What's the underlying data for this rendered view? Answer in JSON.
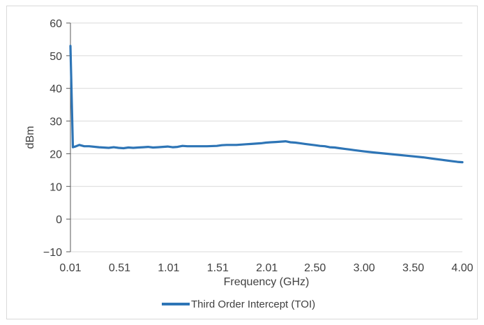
{
  "chart_data": {
    "type": "line",
    "title": "",
    "xlabel": "Frequency (GHz)",
    "ylabel": "dBm",
    "ylim": [
      -10,
      60
    ],
    "xlim": [
      0.01,
      4.0
    ],
    "grid": true,
    "legend_position": "bottom",
    "x_ticks": [
      "0.01",
      "0.51",
      "1.01",
      "1.51",
      "2.01",
      "2.50",
      "3.00",
      "3.50",
      "4.00"
    ],
    "x_tick_values": [
      0.01,
      0.51,
      1.01,
      1.51,
      2.01,
      2.5,
      3.0,
      3.5,
      4.0
    ],
    "y_ticks": [
      "60",
      "50",
      "40",
      "30",
      "20",
      "10",
      "0",
      "−10"
    ],
    "y_tick_values": [
      60,
      50,
      40,
      30,
      20,
      10,
      0,
      -10
    ],
    "series": [
      {
        "name": "Third Order Intercept (TOI)",
        "color": "#2e75b6",
        "x": [
          0.01,
          0.035,
          0.06,
          0.1,
          0.15,
          0.2,
          0.3,
          0.4,
          0.45,
          0.5,
          0.55,
          0.6,
          0.65,
          0.7,
          0.75,
          0.8,
          0.85,
          0.9,
          0.95,
          1.0,
          1.05,
          1.1,
          1.15,
          1.2,
          1.3,
          1.4,
          1.5,
          1.55,
          1.6,
          1.65,
          1.7,
          1.75,
          1.8,
          1.85,
          1.9,
          1.95,
          2.0,
          2.05,
          2.1,
          2.15,
          2.2,
          2.25,
          2.3,
          2.35,
          2.4,
          2.45,
          2.5,
          2.55,
          2.6,
          2.65,
          2.7,
          2.75,
          2.8,
          2.85,
          2.9,
          2.95,
          3.0,
          3.1,
          3.2,
          3.3,
          3.4,
          3.5,
          3.6,
          3.7,
          3.8,
          3.9,
          3.95,
          4.0
        ],
        "values": [
          53,
          22,
          22.2,
          22.7,
          22.3,
          22.3,
          22.0,
          21.8,
          22.0,
          21.8,
          21.7,
          21.9,
          21.8,
          21.9,
          22.0,
          22.1,
          21.9,
          22.0,
          22.1,
          22.2,
          22.0,
          22.1,
          22.4,
          22.3,
          22.3,
          22.3,
          22.4,
          22.6,
          22.7,
          22.7,
          22.7,
          22.8,
          22.9,
          23.0,
          23.1,
          23.2,
          23.4,
          23.5,
          23.6,
          23.7,
          23.8,
          23.5,
          23.4,
          23.2,
          23.0,
          22.8,
          22.6,
          22.4,
          22.3,
          22.0,
          21.9,
          21.7,
          21.5,
          21.3,
          21.1,
          20.9,
          20.7,
          20.4,
          20.1,
          19.8,
          19.5,
          19.2,
          18.9,
          18.5,
          18.1,
          17.7,
          17.5,
          17.4
        ]
      }
    ]
  }
}
